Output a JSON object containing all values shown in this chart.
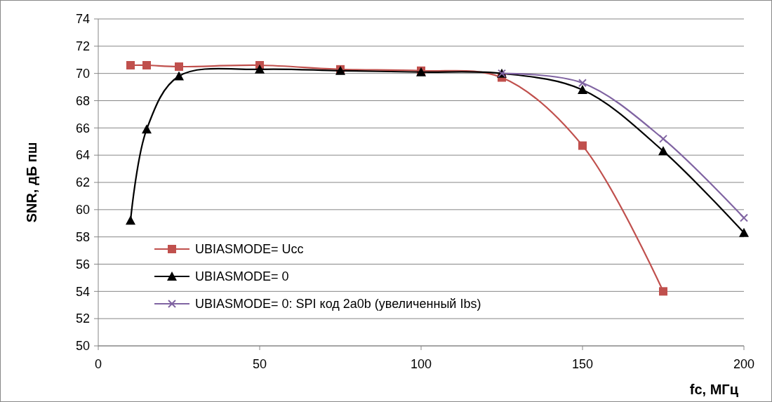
{
  "chart_data": {
    "type": "line",
    "xlabel": "fc, МГц",
    "ylabel": "SNR, дБ пш",
    "x": [
      10,
      15,
      25,
      50,
      75,
      100,
      125,
      150,
      175,
      200
    ],
    "xlim": [
      0,
      200
    ],
    "xticks": [
      0,
      50,
      100,
      150,
      200
    ],
    "ylim": [
      50,
      74
    ],
    "yticks": [
      50,
      52,
      54,
      56,
      58,
      60,
      62,
      64,
      66,
      68,
      70,
      72,
      74
    ],
    "grid": "y",
    "legend": "bottom left",
    "series": [
      {
        "name": "UBIASMODE= Ucc",
        "color": "#c0504d",
        "marker": "square",
        "values": [
          70.6,
          70.6,
          70.5,
          70.6,
          70.3,
          70.2,
          69.7,
          64.7,
          54.0,
          null
        ]
      },
      {
        "name": "UBIASMODE= 0",
        "color": "#000000",
        "marker": "triangle",
        "values": [
          59.2,
          65.9,
          69.8,
          70.3,
          70.2,
          70.1,
          70.0,
          68.8,
          64.3,
          58.3
        ]
      },
      {
        "name": "UBIASMODE= 0:  SPI код 2a0b (увеличенный Ibs)",
        "color": "#8064a2",
        "marker": "cross",
        "values": [
          null,
          null,
          null,
          null,
          null,
          null,
          70.0,
          69.3,
          65.2,
          59.4
        ]
      }
    ]
  }
}
